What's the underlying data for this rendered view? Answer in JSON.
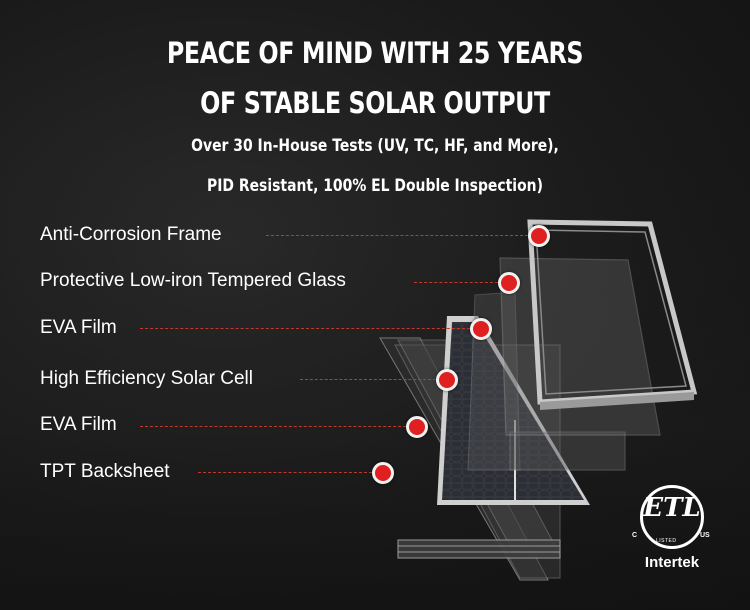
{
  "header": {
    "title_line1": "PEACE OF MIND WITH 25 YEARS",
    "title_line2": "OF STABLE SOLAR OUTPUT",
    "subtitle_line1": "Over 30 In-House Tests (UV, TC, HF, and More),",
    "subtitle_line2": "PID Resistant, 100% EL Double Inspection)"
  },
  "layers": [
    {
      "label": "Anti-Corrosion Frame"
    },
    {
      "label": "Protective Low-iron Tempered Glass"
    },
    {
      "label": "EVA Film"
    },
    {
      "label": "High Efficiency Solar Cell"
    },
    {
      "label": "EVA Film"
    },
    {
      "label": "TPT Backsheet"
    }
  ],
  "certification": {
    "mark": "ETL",
    "left_mark": "C",
    "right_mark": "US",
    "listed_text": "LISTED",
    "brand": "Intertek"
  },
  "colors": {
    "accent_dot": "#e02020",
    "leader_line": "#c0392b",
    "text": "#ffffff",
    "background": "#1c1c1c"
  },
  "icons": {
    "callout_marker": "red-dot-icon",
    "certification_logo": "etl-intertek-logo"
  }
}
